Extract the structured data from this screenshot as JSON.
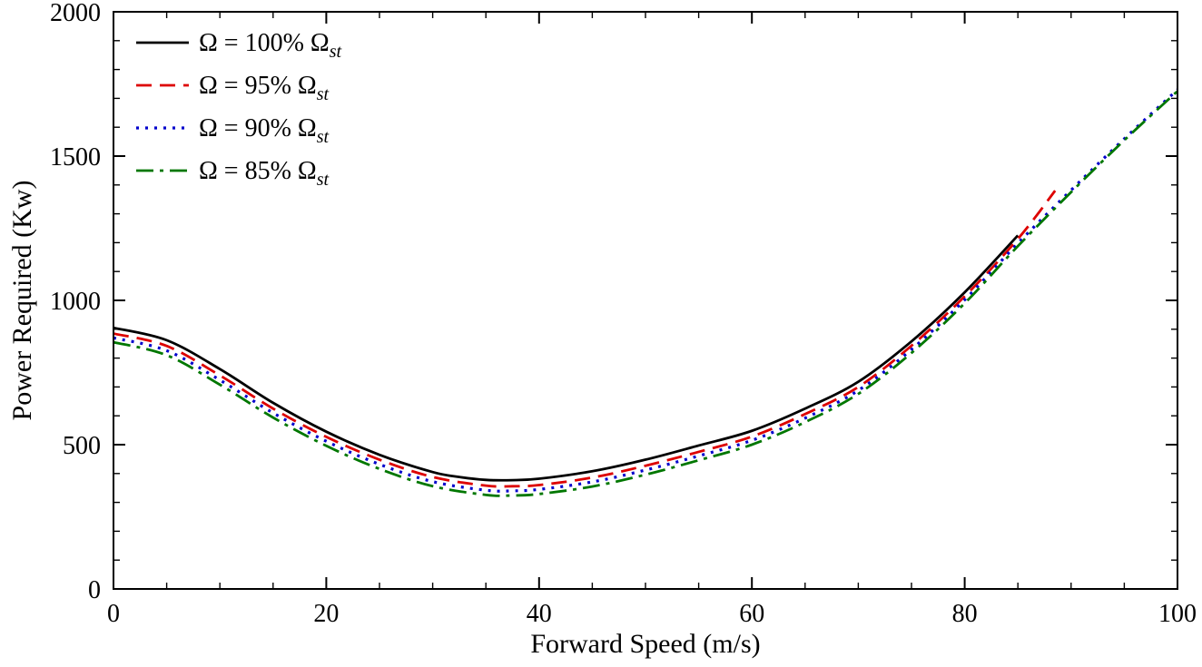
{
  "chart_data": {
    "type": "line",
    "title": "",
    "xlabel": "Forward Speed (m/s)",
    "ylabel": "Power Required (Kw)",
    "xlim": [
      0,
      100
    ],
    "ylim": [
      0,
      2000
    ],
    "x_ticks": [
      0,
      20,
      40,
      60,
      80,
      100
    ],
    "y_ticks": [
      0,
      500,
      1000,
      1500,
      2000
    ],
    "x_minor_step": 5,
    "y_minor_step": 100,
    "grid": false,
    "legend_position": "top-left",
    "frame_color": "#000000",
    "series": [
      {
        "name": "omega-100",
        "label": "Ω = 100% Ω",
        "label_sub": "st",
        "color": "#000000",
        "style": "solid",
        "points": [
          [
            0,
            905
          ],
          [
            5,
            862
          ],
          [
            10,
            762
          ],
          [
            15,
            645
          ],
          [
            20,
            545
          ],
          [
            25,
            465
          ],
          [
            30,
            405
          ],
          [
            32.5,
            388
          ],
          [
            35,
            378
          ],
          [
            37.5,
            377
          ],
          [
            40,
            382
          ],
          [
            45,
            408
          ],
          [
            50,
            448
          ],
          [
            55,
            497
          ],
          [
            60,
            548
          ],
          [
            65,
            625
          ],
          [
            70,
            718
          ],
          [
            75,
            858
          ],
          [
            80,
            1028
          ],
          [
            85,
            1225
          ]
        ]
      },
      {
        "name": "omega-95",
        "label": "Ω = 95% Ω",
        "label_sub": "st",
        "color": "#dd0000",
        "style": "dashed",
        "points": [
          [
            0,
            885
          ],
          [
            5,
            842
          ],
          [
            10,
            740
          ],
          [
            15,
            625
          ],
          [
            20,
            527
          ],
          [
            25,
            448
          ],
          [
            30,
            388
          ],
          [
            35,
            358
          ],
          [
            37.5,
            356
          ],
          [
            40,
            360
          ],
          [
            45,
            386
          ],
          [
            50,
            427
          ],
          [
            55,
            475
          ],
          [
            60,
            528
          ],
          [
            65,
            606
          ],
          [
            70,
            700
          ],
          [
            75,
            843
          ],
          [
            80,
            1014
          ],
          [
            85,
            1213
          ],
          [
            88.5,
            1380
          ]
        ]
      },
      {
        "name": "omega-90",
        "label": "Ω = 90% Ω",
        "label_sub": "st",
        "color": "#0000cc",
        "style": "dotted",
        "points": [
          [
            0,
            870
          ],
          [
            5,
            826
          ],
          [
            10,
            724
          ],
          [
            15,
            610
          ],
          [
            20,
            512
          ],
          [
            25,
            432
          ],
          [
            30,
            372
          ],
          [
            35,
            342
          ],
          [
            37.5,
            340
          ],
          [
            40,
            345
          ],
          [
            45,
            371
          ],
          [
            50,
            412
          ],
          [
            55,
            461
          ],
          [
            60,
            515
          ],
          [
            65,
            592
          ],
          [
            70,
            688
          ],
          [
            75,
            830
          ],
          [
            80,
            1002
          ],
          [
            85,
            1198
          ],
          [
            90,
            1382
          ],
          [
            95,
            1560
          ],
          [
            100,
            1730
          ]
        ]
      },
      {
        "name": "omega-85",
        "label": "Ω = 85% Ω",
        "label_sub": "st",
        "color": "#007700",
        "style": "dashdot",
        "points": [
          [
            0,
            855
          ],
          [
            5,
            810
          ],
          [
            10,
            708
          ],
          [
            15,
            594
          ],
          [
            20,
            496
          ],
          [
            25,
            416
          ],
          [
            30,
            356
          ],
          [
            35,
            326
          ],
          [
            37.5,
            324
          ],
          [
            40,
            329
          ],
          [
            45,
            355
          ],
          [
            50,
            396
          ],
          [
            55,
            446
          ],
          [
            60,
            500
          ],
          [
            65,
            578
          ],
          [
            70,
            676
          ],
          [
            75,
            818
          ],
          [
            80,
            990
          ],
          [
            85,
            1188
          ],
          [
            90,
            1375
          ],
          [
            95,
            1555
          ],
          [
            100,
            1725
          ]
        ]
      }
    ]
  }
}
